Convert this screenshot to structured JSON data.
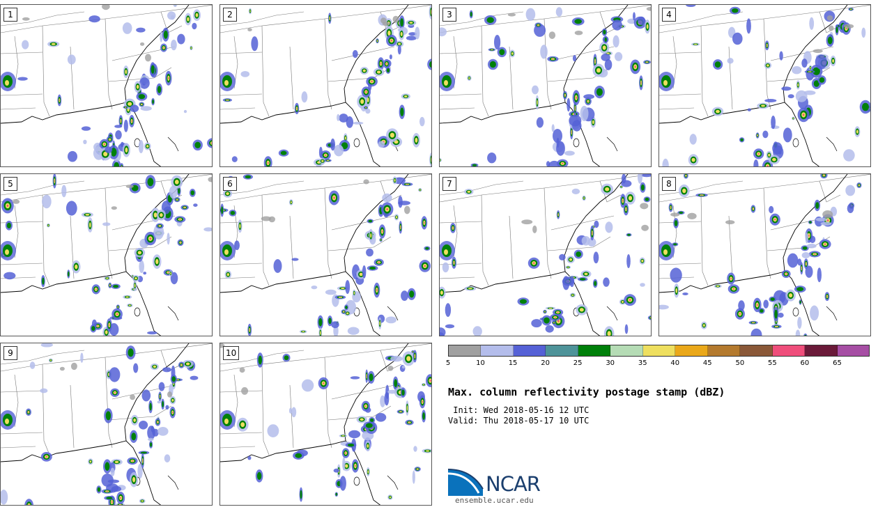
{
  "panels": [
    {
      "label": "1"
    },
    {
      "label": "2"
    },
    {
      "label": "3"
    },
    {
      "label": "4"
    },
    {
      "label": "5"
    },
    {
      "label": "6"
    },
    {
      "label": "7"
    },
    {
      "label": "8"
    },
    {
      "label": "9"
    },
    {
      "label": "10"
    }
  ],
  "colorbar": {
    "ticks": [
      "5",
      "10",
      "15",
      "20",
      "25",
      "30",
      "35",
      "40",
      "45",
      "50",
      "55",
      "60",
      "65"
    ],
    "colors": [
      "#a0a0a0",
      "#b4bdeb",
      "#5561d6",
      "#4e9399",
      "#00800a",
      "#b5dcb5",
      "#eedf5f",
      "#eaa81a",
      "#b47a2e",
      "#8a5838",
      "#ef4e7b",
      "#6a1a39",
      "#a64ea4"
    ]
  },
  "title": "Max. column reflectivity postage stamp (dBZ)",
  "init_line": " Init: Wed 2018-05-16 12 UTC",
  "valid_line": "Valid: Thu 2018-05-17 10 UTC",
  "logo": {
    "name": "ncar-logo",
    "text": "NCAR"
  },
  "site": "ensemble.ucar.edu"
}
